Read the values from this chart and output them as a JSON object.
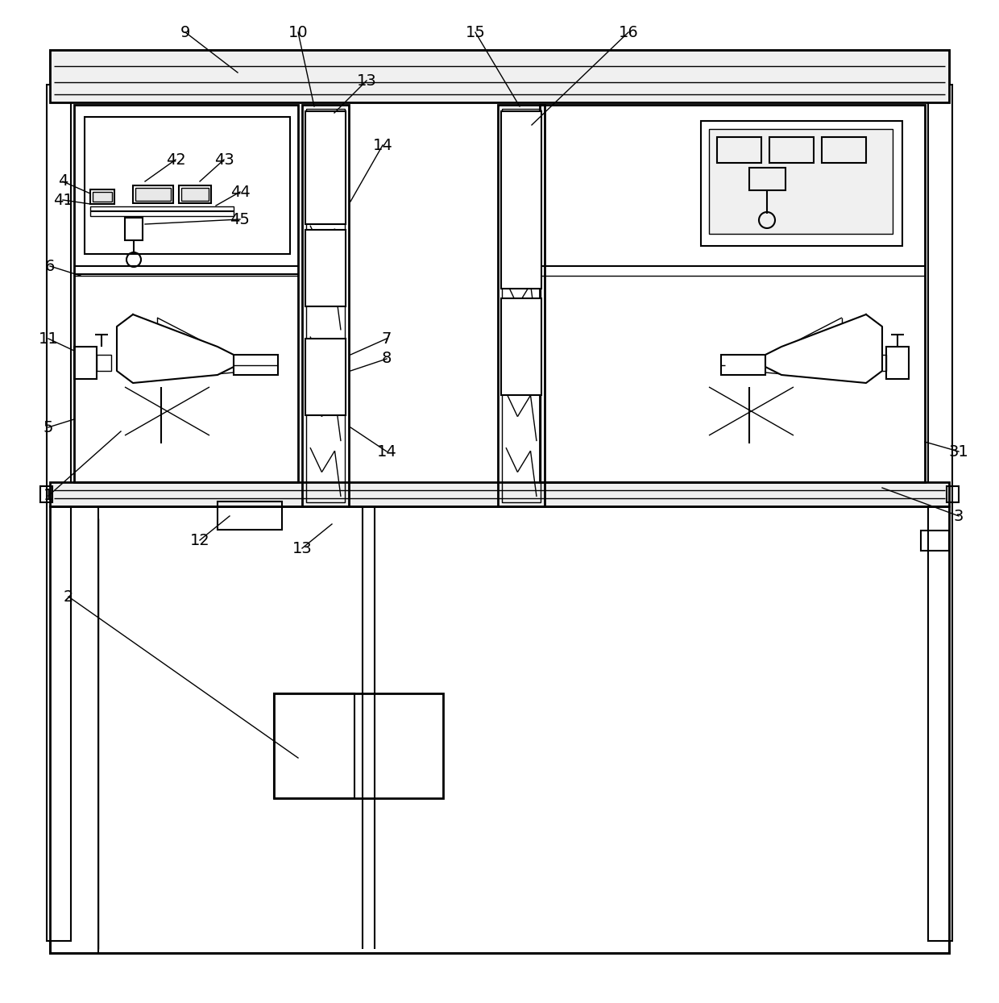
{
  "bg_color": "#ffffff",
  "line_color": "#000000",
  "lw_thin": 1.0,
  "lw_med": 1.5,
  "lw_thick": 2.0,
  "label_fontsize": 14,
  "fig_width": 12.4,
  "fig_height": 12.44
}
